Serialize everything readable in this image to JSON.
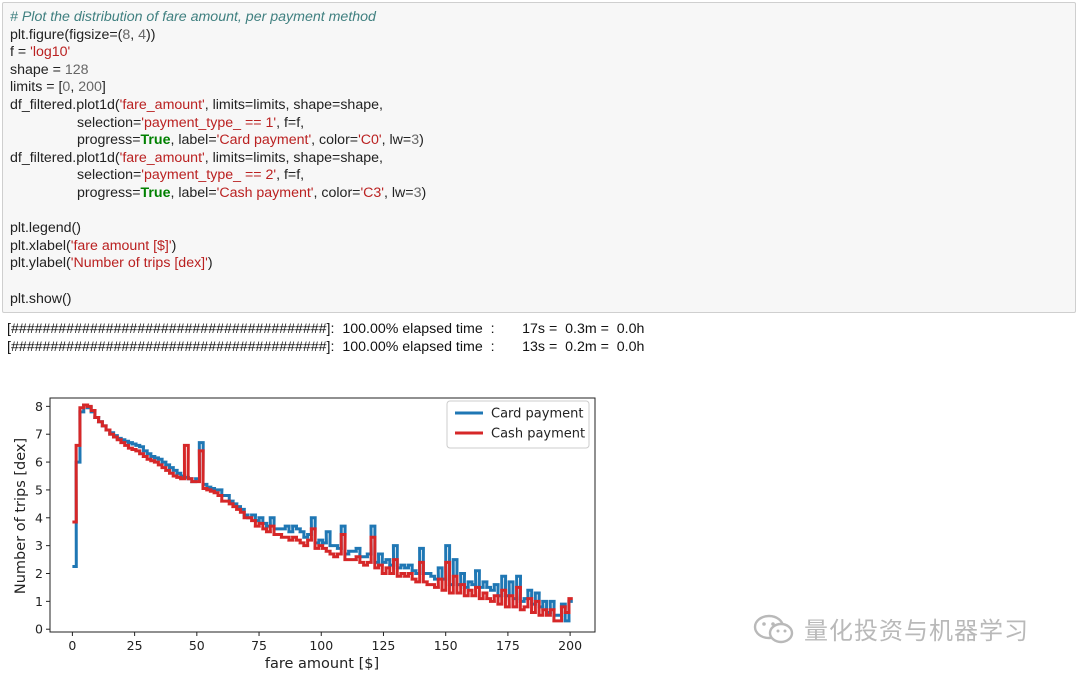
{
  "code_cell": {
    "lines": [
      [
        {
          "t": "cm",
          "v": "# Plot the distribution of fare amount, per payment method"
        }
      ],
      [
        {
          "t": "",
          "v": "plt.figure(figsize=("
        },
        {
          "t": "nu",
          "v": "8"
        },
        {
          "t": "",
          "v": ", "
        },
        {
          "t": "nu",
          "v": "4"
        },
        {
          "t": "",
          "v": "))"
        }
      ],
      [
        {
          "t": "",
          "v": "f = "
        },
        {
          "t": "st",
          "v": "'log10'"
        }
      ],
      [
        {
          "t": "",
          "v": "shape = "
        },
        {
          "t": "nu",
          "v": "128"
        }
      ],
      [
        {
          "t": "",
          "v": "limits = ["
        },
        {
          "t": "nu",
          "v": "0"
        },
        {
          "t": "",
          "v": ", "
        },
        {
          "t": "nu",
          "v": "200"
        },
        {
          "t": "",
          "v": "]"
        }
      ],
      [
        {
          "t": "",
          "v": "df_filtered.plot1d("
        },
        {
          "t": "st",
          "v": "'fare_amount'"
        },
        {
          "t": "",
          "v": ", limits=limits, shape=shape,"
        }
      ],
      [
        {
          "t": "",
          "v": "                 selection="
        },
        {
          "t": "st",
          "v": "'payment_type_ == 1'"
        },
        {
          "t": "",
          "v": ", f=f,"
        }
      ],
      [
        {
          "t": "",
          "v": "                 progress="
        },
        {
          "t": "kw",
          "v": "True"
        },
        {
          "t": "",
          "v": ", label="
        },
        {
          "t": "st",
          "v": "'Card payment'"
        },
        {
          "t": "",
          "v": ", color="
        },
        {
          "t": "st",
          "v": "'C0'"
        },
        {
          "t": "",
          "v": ", lw="
        },
        {
          "t": "nu",
          "v": "3"
        },
        {
          "t": "",
          "v": ")"
        }
      ],
      [
        {
          "t": "",
          "v": "df_filtered.plot1d("
        },
        {
          "t": "st",
          "v": "'fare_amount'"
        },
        {
          "t": "",
          "v": ", limits=limits, shape=shape,"
        }
      ],
      [
        {
          "t": "",
          "v": "                 selection="
        },
        {
          "t": "st",
          "v": "'payment_type_ == 2'"
        },
        {
          "t": "",
          "v": ", f=f,"
        }
      ],
      [
        {
          "t": "",
          "v": "                 progress="
        },
        {
          "t": "kw",
          "v": "True"
        },
        {
          "t": "",
          "v": ", label="
        },
        {
          "t": "st",
          "v": "'Cash payment'"
        },
        {
          "t": "",
          "v": ", color="
        },
        {
          "t": "st",
          "v": "'C3'"
        },
        {
          "t": "",
          "v": ", lw="
        },
        {
          "t": "nu",
          "v": "3"
        },
        {
          "t": "",
          "v": ")"
        }
      ],
      [
        {
          "t": "",
          "v": ""
        }
      ],
      [
        {
          "t": "",
          "v": "plt.legend()"
        }
      ],
      [
        {
          "t": "",
          "v": "plt.xlabel("
        },
        {
          "t": "st",
          "v": "'fare amount [$]'"
        },
        {
          "t": "",
          "v": ")"
        }
      ],
      [
        {
          "t": "",
          "v": "plt.ylabel("
        },
        {
          "t": "st",
          "v": "'Number of trips [dex]'"
        },
        {
          "t": "",
          "v": ")"
        }
      ],
      [
        {
          "t": "",
          "v": ""
        }
      ],
      [
        {
          "t": "",
          "v": "plt.show()"
        }
      ]
    ]
  },
  "output": {
    "lines": [
      "[########################################]:  100.00% elapsed time  :       17s =  0.3m =  0.0h",
      "[########################################]:  100.00% elapsed time  :       13s =  0.2m =  0.0h"
    ]
  },
  "chart_data": {
    "type": "line",
    "title": "",
    "xlabel": "fare amount [$]",
    "ylabel": "Number of trips [dex]",
    "xlim": [
      -9,
      210
    ],
    "ylim": [
      -0.1,
      8.3
    ],
    "xticks": [
      0,
      25,
      50,
      75,
      100,
      125,
      150,
      175,
      200
    ],
    "yticks": [
      0,
      1,
      2,
      3,
      4,
      5,
      6,
      7,
      8
    ],
    "grid": false,
    "legend_position": "top-right",
    "series": [
      {
        "name": "Card payment",
        "color": "#1f77b4",
        "x": [
          0,
          1.5,
          3,
          4.5,
          6,
          7.5,
          9,
          10.5,
          12,
          13.5,
          15,
          16.5,
          18,
          19.5,
          21,
          22.5,
          24,
          25.5,
          27,
          28.5,
          30,
          31.5,
          33,
          34.5,
          36,
          37.5,
          39,
          40.5,
          42,
          43.5,
          45,
          46.5,
          48,
          49.5,
          51,
          52.5,
          54,
          55.5,
          57,
          58.5,
          60,
          61.5,
          63,
          64.5,
          66,
          67.5,
          69,
          70.5,
          72,
          73.5,
          75,
          76.5,
          78,
          79.5,
          81,
          82.5,
          84,
          85.5,
          87,
          88.5,
          90,
          91.5,
          93,
          94.5,
          96,
          97.5,
          99,
          100.5,
          102,
          103.5,
          105,
          106.5,
          108,
          109.5,
          111,
          112.5,
          114,
          115.5,
          117,
          118.5,
          120,
          121.5,
          123,
          124.5,
          126,
          127.5,
          129,
          130.5,
          132,
          133.5,
          135,
          136.5,
          138,
          139.5,
          141,
          142.5,
          144,
          145.5,
          147,
          148.5,
          150,
          151.5,
          153,
          154.5,
          156,
          157.5,
          159,
          160.5,
          162,
          163.5,
          165,
          166.5,
          168,
          169.5,
          171,
          172.5,
          174,
          175.5,
          177,
          178.5,
          180,
          181.5,
          183,
          184.5,
          186,
          187.5,
          189,
          190.5,
          192,
          193.5,
          195,
          196.5,
          198,
          199.5
        ],
        "values": [
          2.25,
          6.0,
          7.8,
          8.05,
          7.95,
          7.8,
          7.6,
          7.45,
          7.3,
          7.15,
          7.05,
          6.95,
          6.85,
          6.8,
          6.75,
          6.7,
          6.65,
          6.6,
          6.55,
          6.4,
          6.3,
          6.2,
          6.15,
          6.1,
          6.0,
          5.9,
          5.8,
          5.7,
          5.6,
          5.5,
          5.45,
          5.4,
          5.3,
          5.4,
          6.7,
          5.2,
          5.1,
          5.05,
          5.0,
          5.0,
          4.8,
          4.8,
          4.6,
          4.5,
          4.4,
          4.3,
          4.1,
          4.0,
          4.1,
          3.9,
          4.0,
          3.8,
          3.7,
          4.0,
          3.6,
          3.6,
          3.6,
          3.7,
          3.5,
          3.7,
          3.6,
          3.5,
          3.3,
          3.4,
          4.0,
          3.1,
          3.2,
          3.1,
          3.5,
          3.0,
          3.0,
          2.9,
          3.7,
          2.7,
          2.8,
          2.8,
          2.9,
          2.6,
          2.6,
          2.7,
          3.7,
          2.4,
          2.7,
          2.4,
          2.5,
          2.3,
          3.0,
          2.2,
          2.3,
          2.2,
          2.3,
          2.1,
          2.0,
          2.9,
          2.0,
          2.0,
          1.9,
          1.8,
          2.2,
          1.8,
          3.0,
          1.6,
          2.5,
          1.6,
          2.0,
          1.5,
          1.7,
          1.6,
          2.1,
          1.5,
          1.7,
          1.5,
          1.4,
          1.6,
          1.2,
          1.9,
          1.2,
          1.7,
          1.1,
          1.9,
          1.0,
          1.1,
          1.4,
          0.9,
          1.3,
          0.8,
          1.0,
          0.6,
          1.0,
          0.5,
          0.5,
          0.9,
          0.3,
          1.0
        ]
      },
      {
        "name": "Cash payment",
        "color": "#d62728",
        "x": [
          0,
          1.5,
          3,
          4.5,
          6,
          7.5,
          9,
          10.5,
          12,
          13.5,
          15,
          16.5,
          18,
          19.5,
          21,
          22.5,
          24,
          25.5,
          27,
          28.5,
          30,
          31.5,
          33,
          34.5,
          36,
          37.5,
          39,
          40.5,
          42,
          43.5,
          45,
          46.5,
          48,
          49.5,
          51,
          52.5,
          54,
          55.5,
          57,
          58.5,
          60,
          61.5,
          63,
          64.5,
          66,
          67.5,
          69,
          70.5,
          72,
          73.5,
          75,
          76.5,
          78,
          79.5,
          81,
          82.5,
          84,
          85.5,
          87,
          88.5,
          90,
          91.5,
          93,
          94.5,
          96,
          97.5,
          99,
          100.5,
          102,
          103.5,
          105,
          106.5,
          108,
          109.5,
          111,
          112.5,
          114,
          115.5,
          117,
          118.5,
          120,
          121.5,
          123,
          124.5,
          126,
          127.5,
          129,
          130.5,
          132,
          133.5,
          135,
          136.5,
          138,
          139.5,
          141,
          142.5,
          144,
          145.5,
          147,
          148.5,
          150,
          151.5,
          153,
          154.5,
          156,
          157.5,
          159,
          160.5,
          162,
          163.5,
          165,
          166.5,
          168,
          169.5,
          171,
          172.5,
          174,
          175.5,
          177,
          178.5,
          180,
          181.5,
          183,
          184.5,
          186,
          187.5,
          189,
          190.5,
          192,
          193.5,
          195,
          196.5,
          198,
          199.5
        ],
        "values": [
          3.85,
          6.6,
          7.95,
          8.05,
          8.0,
          7.85,
          7.6,
          7.45,
          7.3,
          7.15,
          7.0,
          6.9,
          6.8,
          6.7,
          6.6,
          6.5,
          6.45,
          6.4,
          6.3,
          6.2,
          6.1,
          6.05,
          6.0,
          5.9,
          5.8,
          5.7,
          5.6,
          5.5,
          5.45,
          5.4,
          6.6,
          5.4,
          5.3,
          5.3,
          6.4,
          5.05,
          5.0,
          4.95,
          4.9,
          4.8,
          4.6,
          4.6,
          4.5,
          4.4,
          4.3,
          4.2,
          4.0,
          4.0,
          3.9,
          3.7,
          3.8,
          3.6,
          3.5,
          3.7,
          3.4,
          3.4,
          3.3,
          3.3,
          3.2,
          3.3,
          3.2,
          3.1,
          3.0,
          3.2,
          3.6,
          2.9,
          3.0,
          2.9,
          2.8,
          2.7,
          2.6,
          2.7,
          3.4,
          2.5,
          2.5,
          2.5,
          2.6,
          2.4,
          2.3,
          2.4,
          3.3,
          2.2,
          2.3,
          2.0,
          2.2,
          2.0,
          2.5,
          1.9,
          2.0,
          1.9,
          2.0,
          1.8,
          1.7,
          2.4,
          1.7,
          1.6,
          1.6,
          1.5,
          1.8,
          1.4,
          2.4,
          1.3,
          1.9,
          1.3,
          1.6,
          1.2,
          1.4,
          1.2,
          1.5,
          1.1,
          1.3,
          1.1,
          1.0,
          1.2,
          0.9,
          1.4,
          0.8,
          1.2,
          0.8,
          1.5,
          0.7,
          0.8,
          1.1,
          0.6,
          1.0,
          0.5,
          0.7,
          0.5,
          0.7,
          0.3,
          0.3,
          0.8,
          0.6,
          1.1
        ]
      }
    ]
  },
  "watermark": {
    "text": "量化投资与机器学习",
    "icon": "wechat-icon",
    "color": "#b9b9b9"
  }
}
